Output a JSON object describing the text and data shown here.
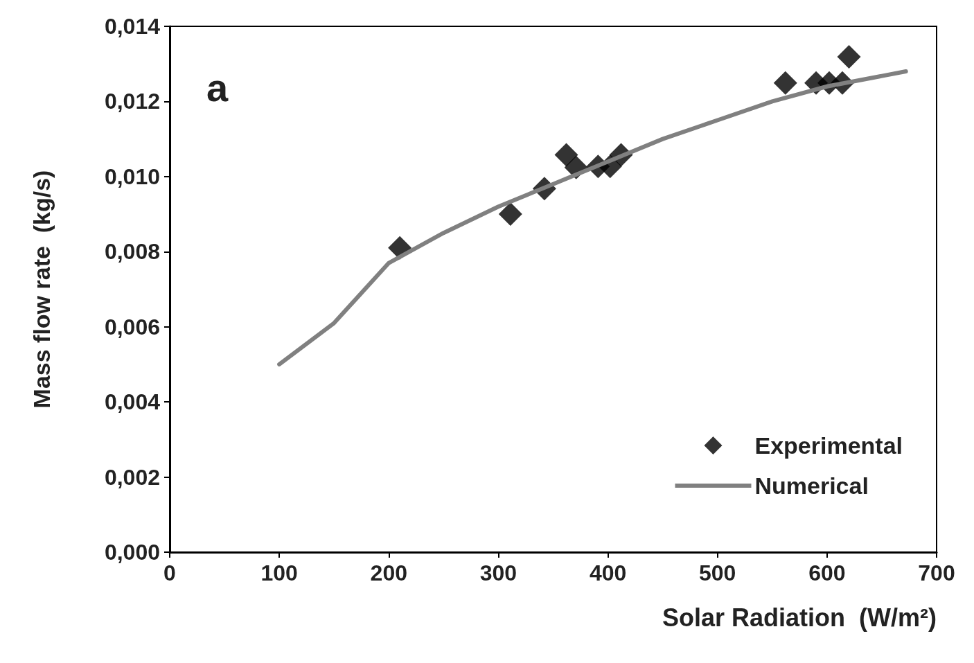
{
  "chart_data": {
    "type": "scatter",
    "xlabel": "Solar Radiation  (W/m²)",
    "ylabel": "Mass flow rate  (kg/s)",
    "annotations": [
      "a"
    ],
    "series": [
      {
        "name": "Experimental",
        "color": "#000000",
        "marker": "diamond",
        "x": [
          210,
          311,
          342,
          362,
          371,
          391,
          402,
          412,
          562,
          590,
          602,
          614,
          620
        ],
        "values": [
          0.0081,
          0.009,
          0.00968,
          0.01058,
          0.01024,
          0.01027,
          0.01027,
          0.01058,
          0.01249,
          0.01249,
          0.01249,
          0.01249,
          0.01319
        ]
      },
      {
        "name": "Numerical",
        "type": "line",
        "color": "#808080",
        "marker": "none",
        "line_style": "solid",
        "x": [
          100,
          150,
          200,
          250,
          300,
          350,
          400,
          450,
          500,
          550,
          600,
          672
        ],
        "values": [
          0.005,
          0.0061,
          0.0077,
          0.0085,
          0.0092,
          0.0098,
          0.0104,
          0.011,
          0.0115,
          0.012,
          0.0124,
          0.0128
        ]
      }
    ],
    "xlim": [
      0,
      700
    ],
    "xticks": [
      0,
      100,
      200,
      300,
      400,
      500,
      600,
      700
    ],
    "ylim": [
      0,
      0.014
    ],
    "yticks": [
      {
        "value": 0,
        "label": "0,000"
      },
      {
        "value": 0.002,
        "label": "0,002"
      },
      {
        "value": 0.004,
        "label": "0,004"
      },
      {
        "value": 0.006,
        "label": "0,006"
      },
      {
        "value": 0.008,
        "label": "0,008"
      },
      {
        "value": 0.01,
        "label": "0,010"
      },
      {
        "value": 0.012,
        "label": "0,012"
      },
      {
        "value": 0.014,
        "label": "0,014"
      }
    ],
    "grid": false,
    "legend": "bottom right"
  }
}
